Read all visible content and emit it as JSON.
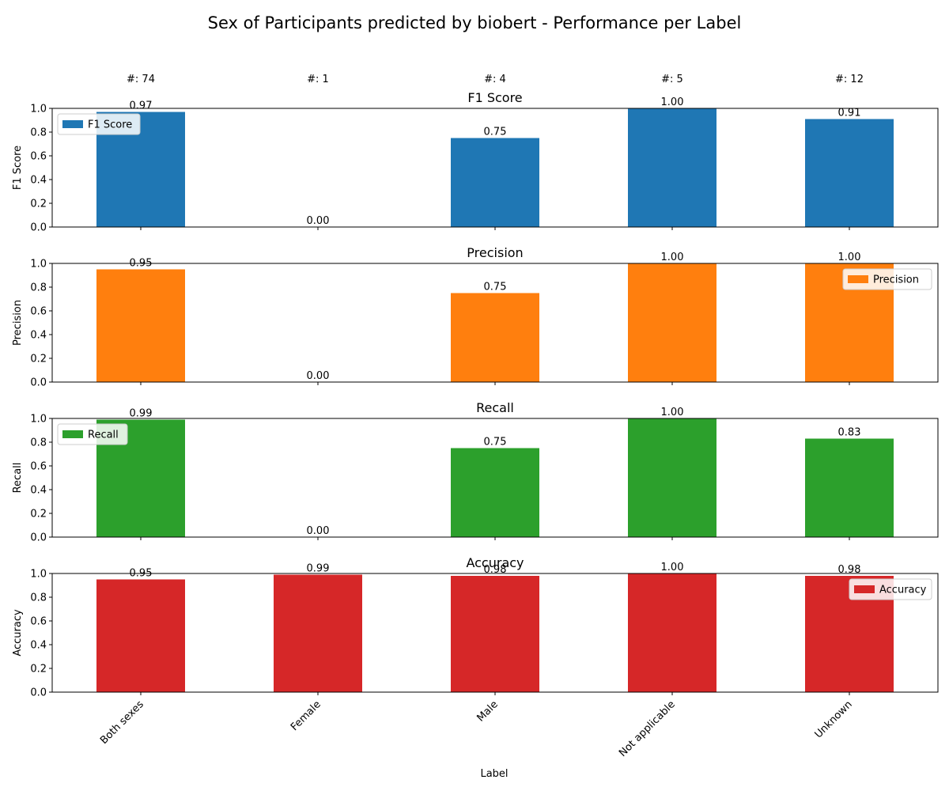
{
  "chart_data": {
    "type": "bar",
    "title": "Sex of Participants predicted by biobert - Performance per Label",
    "xlabel": "Label",
    "categories": [
      "Both sexes",
      "Female",
      "Male",
      "Not applicable",
      "Unknown"
    ],
    "counts": [
      "#: 74",
      "#: 1",
      "#: 4",
      "#: 5",
      "#: 12"
    ],
    "ylim": [
      0,
      1
    ],
    "yticks": [
      "0.0",
      "0.2",
      "0.4",
      "0.6",
      "0.8",
      "1.0"
    ],
    "series": [
      {
        "name": "F1 Score",
        "title": "F1 Score",
        "ylabel": "F1 Score",
        "color": "#1f77b4",
        "legend": "top-left",
        "values": [
          0.97,
          0.0,
          0.75,
          1.0,
          0.91
        ],
        "labels": [
          "0.97",
          "0.00",
          "0.75",
          "1.00",
          "0.91"
        ]
      },
      {
        "name": "Precision",
        "title": "Precision",
        "ylabel": "Precision",
        "color": "#ff7f0e",
        "legend": "top-right",
        "values": [
          0.95,
          0.0,
          0.75,
          1.0,
          1.0
        ],
        "labels": [
          "0.95",
          "0.00",
          "0.75",
          "1.00",
          "1.00"
        ]
      },
      {
        "name": "Recall",
        "title": "Recall",
        "ylabel": "Recall",
        "color": "#2ca02c",
        "legend": "top-left",
        "values": [
          0.99,
          0.0,
          0.75,
          1.0,
          0.83
        ],
        "labels": [
          "0.99",
          "0.00",
          "0.75",
          "1.00",
          "0.83"
        ]
      },
      {
        "name": "Accuracy",
        "title": "Accuracy",
        "ylabel": "Accuracy",
        "color": "#d62728",
        "legend": "top-right",
        "values": [
          0.95,
          0.99,
          0.98,
          1.0,
          0.98
        ],
        "labels": [
          "0.95",
          "0.99",
          "0.98",
          "1.00",
          "0.98"
        ]
      }
    ]
  }
}
